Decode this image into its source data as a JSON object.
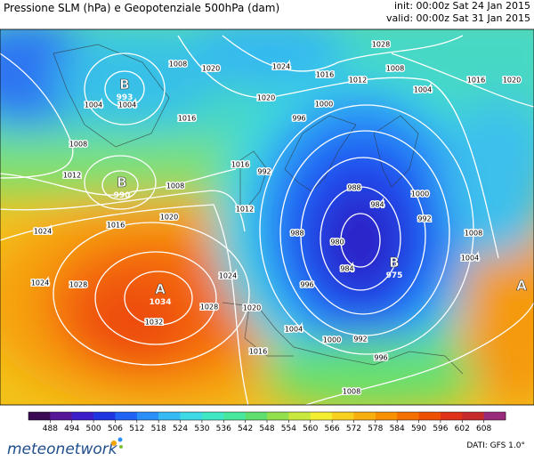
{
  "header": {
    "title": "Pressione SLM (hPa) e Geopotenziale 500hPa (dam)",
    "init": "init: 00:00z Sat 24 Jan 2015",
    "valid": "valid: 00:00z Sat 31 Jan 2015"
  },
  "map": {
    "centers": [
      {
        "letter": "B",
        "value": "993"
      },
      {
        "letter": "B",
        "value": "990"
      },
      {
        "letter": "A",
        "value": "1034"
      },
      {
        "letter": "B",
        "value": "975"
      },
      {
        "letter": "A"
      }
    ],
    "isobar_labels": [
      "1008",
      "1004",
      "1020",
      "1024",
      "1028",
      "1008",
      "1012",
      "1016",
      "1020",
      "1004",
      "1016",
      "1020",
      "1004",
      "1016",
      "1008",
      "1012",
      "996",
      "1000",
      "1016",
      "1008",
      "1020",
      "1016",
      "1024",
      "1012",
      "992",
      "988",
      "984",
      "1000",
      "992",
      "1008",
      "980",
      "988",
      "984",
      "996",
      "1004",
      "1024",
      "1028",
      "1024",
      "1028",
      "1020",
      "1032",
      "1016",
      "1004",
      "1000",
      "992",
      "996",
      "1008"
    ]
  },
  "colorbar": {
    "levels": [
      488,
      494,
      500,
      506,
      512,
      518,
      524,
      530,
      536,
      542,
      548,
      554,
      560,
      566,
      572,
      578,
      584,
      590,
      596,
      602,
      608
    ],
    "colors": [
      "#3a0a55",
      "#55169a",
      "#3b1dc9",
      "#1c34e2",
      "#1f62f5",
      "#2a8ff8",
      "#35baf4",
      "#3ed9e6",
      "#41e8c6",
      "#47e89e",
      "#5fe06e",
      "#92e04e",
      "#c9e83e",
      "#f3ee30",
      "#f8d01f",
      "#f8b010",
      "#f89000",
      "#f67000",
      "#ef5000",
      "#de3118",
      "#c62a2a",
      "#9a2a7a"
    ]
  },
  "footer": {
    "source": "DATI: GFS 1.0°",
    "logo": "meteonetwork"
  }
}
